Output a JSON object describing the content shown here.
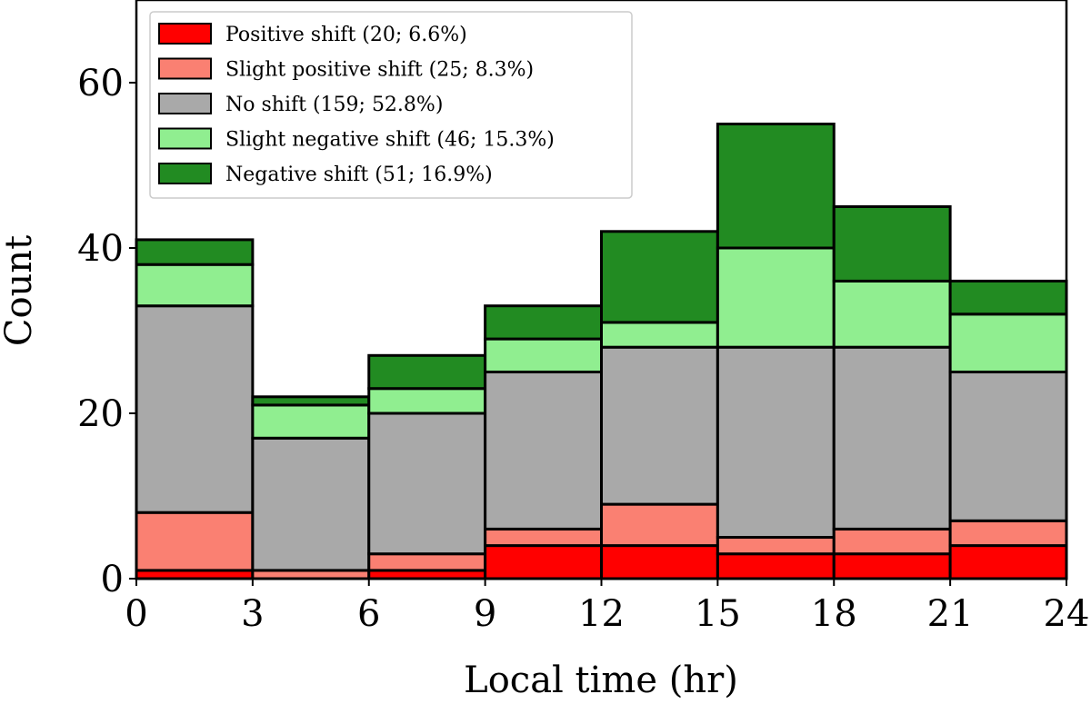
{
  "chart_data": {
    "type": "bar",
    "stacked": true,
    "xlabel": "Local time (hr)",
    "ylabel": "Count",
    "xlim": [
      0,
      24
    ],
    "ylim": [
      0,
      70
    ],
    "xticks": [
      0,
      3,
      6,
      9,
      12,
      15,
      18,
      21,
      24
    ],
    "yticks": [
      0,
      20,
      40,
      60
    ],
    "categories": [
      "0-3",
      "3-6",
      "6-9",
      "9-12",
      "12-15",
      "15-18",
      "18-21",
      "21-24"
    ],
    "bin_edges": [
      0,
      3,
      6,
      9,
      12,
      15,
      18,
      21,
      24
    ],
    "legend_position": "upper-left",
    "series": [
      {
        "name": "Positive shift",
        "label": "Positive shift (20; 6.6%)",
        "color": "#ff0000",
        "values": [
          1,
          0,
          1,
          4,
          4,
          3,
          3,
          4
        ]
      },
      {
        "name": "Slight positive shift",
        "label": "Slight positive shift (25; 8.3%)",
        "color": "#fa8072",
        "values": [
          7,
          1,
          2,
          2,
          5,
          2,
          3,
          3
        ]
      },
      {
        "name": "No shift",
        "label": "No shift (159; 52.8%)",
        "color": "#a9a9a9",
        "values": [
          25,
          16,
          17,
          19,
          19,
          23,
          22,
          18
        ]
      },
      {
        "name": "Slight negative shift",
        "label": "Slight negative shift (46; 15.3%)",
        "color": "#90ee90",
        "values": [
          5,
          4,
          3,
          4,
          3,
          12,
          8,
          7
        ]
      },
      {
        "name": "Negative shift",
        "label": "Negative shift (51; 16.9%)",
        "color": "#228b22",
        "values": [
          3,
          1,
          4,
          4,
          11,
          15,
          9,
          4
        ]
      }
    ]
  }
}
